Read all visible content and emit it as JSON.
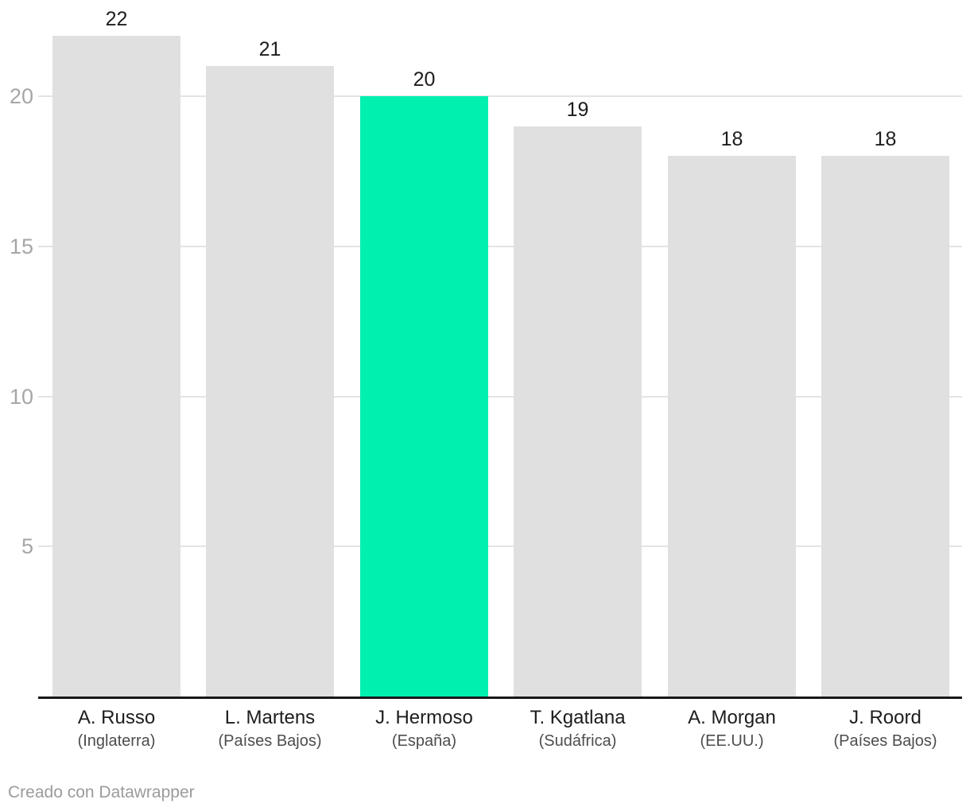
{
  "chart_data": {
    "type": "bar",
    "categories": [
      "A. Russo",
      "L. Martens",
      "J. Hermoso",
      "T. Kgatlana",
      "A. Morgan",
      "J. Roord"
    ],
    "category_sublabels": [
      "(Inglaterra)",
      "(Países Bajos)",
      "(España)",
      "(Sudáfrica)",
      "(EE.UU.)",
      "(Países Bajos)"
    ],
    "values": [
      22,
      21,
      20,
      19,
      18,
      18
    ],
    "value_labels": [
      "22",
      "21",
      "20",
      "19",
      "18",
      "18"
    ],
    "highlighted_index": 2,
    "highlighted_category": "J. Hermoso",
    "yticks": [
      5,
      10,
      15,
      20
    ],
    "ytick_labels": [
      "5",
      "10",
      "15",
      "20"
    ],
    "ylim": [
      0,
      23.2
    ],
    "grid": true,
    "legend": "none",
    "title": "",
    "xlabel": "",
    "ylabel": "",
    "colors": {
      "bar": "#e0e0e0",
      "highlight": "#00f0b0",
      "gridline": "#e4e4e4",
      "axis": "#18181a",
      "tick_label": "#a6a6a6",
      "value_label": "#1d1d1d",
      "category_label": "#1d1d1d",
      "sublabel": "#4d4d4d",
      "credit": "#9b9b9b"
    }
  },
  "footer": {
    "credit": "Creado con Datawrapper"
  }
}
